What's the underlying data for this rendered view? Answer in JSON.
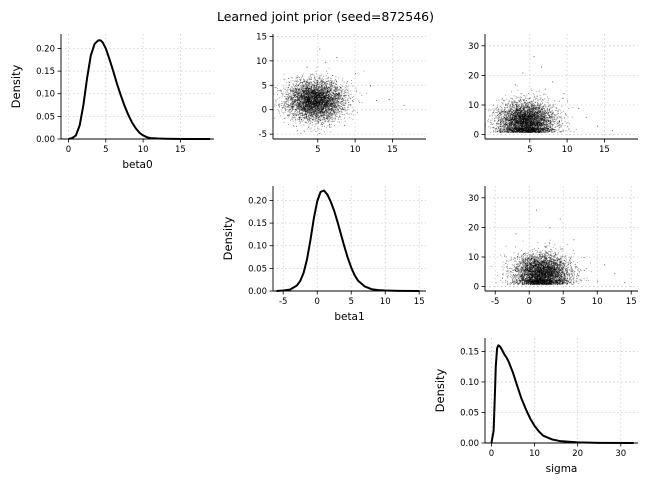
{
  "title": "Learned joint prior (seed=872546)",
  "chart_data": [
    {
      "id": "kde-beta0",
      "type": "line",
      "xlabel": "beta0",
      "ylabel": "Density",
      "xticks": [
        0,
        5,
        10,
        15
      ],
      "yticks": [
        "0.00",
        "0.05",
        "0.10",
        "0.15",
        "0.20"
      ],
      "xlim": [
        -1,
        19.5
      ],
      "ylim": [
        0,
        0.232
      ],
      "grid": true,
      "x": [
        0.0,
        0.5,
        1.0,
        1.5,
        2.0,
        2.5,
        3.0,
        3.5,
        4.0,
        4.3,
        4.6,
        5.0,
        5.5,
        6.0,
        6.5,
        7.0,
        7.5,
        8.0,
        8.5,
        9.0,
        9.5,
        10.0,
        10.5,
        11.0,
        12.0,
        13.0,
        14.0,
        16.0,
        19.0
      ],
      "y": [
        0.0,
        0.002,
        0.008,
        0.03,
        0.075,
        0.135,
        0.185,
        0.21,
        0.218,
        0.218,
        0.213,
        0.2,
        0.176,
        0.15,
        0.122,
        0.097,
        0.074,
        0.054,
        0.037,
        0.024,
        0.014,
        0.008,
        0.004,
        0.002,
        0.001,
        0.0005,
        0.0002,
        0.0001,
        0.0
      ]
    },
    {
      "id": "scatter-beta0-beta1",
      "type": "scatter",
      "x_variable": "beta0",
      "y_variable": "beta1",
      "xticks": [
        5,
        10,
        15
      ],
      "yticks": [
        -5,
        0,
        5,
        10,
        15
      ],
      "xlim": [
        -1,
        19.5
      ],
      "ylim": [
        -6,
        15.5
      ],
      "grid": true,
      "point_color": "#000000",
      "mean": [
        4.6,
        1.9
      ],
      "sd": [
        1.9,
        2.0
      ],
      "corr": 0.0,
      "n_points": 4500,
      "outliers": [
        [
          5.2,
          12.5
        ],
        [
          7.5,
          10.8
        ],
        [
          3.5,
          8.8
        ],
        [
          12.8,
          2.0
        ],
        [
          8.5,
          -3.1
        ],
        [
          14.5,
          2.2
        ],
        [
          2.2,
          -4.2
        ],
        [
          16.5,
          1.0
        ],
        [
          10.0,
          7.5
        ],
        [
          6.0,
          9.8
        ],
        [
          12.0,
          5.0
        ],
        [
          1.0,
          6.5
        ]
      ]
    },
    {
      "id": "scatter-beta0-sigma",
      "type": "scatter",
      "x_variable": "beta0",
      "y_variable": "sigma",
      "xticks": [
        5,
        10,
        15
      ],
      "yticks": [
        0,
        10,
        20,
        30
      ],
      "xlim": [
        -1,
        19.5
      ],
      "ylim": [
        -1.5,
        34
      ],
      "grid": true,
      "point_color": "#000000",
      "mean": [
        4.5,
        4.6
      ],
      "sd": [
        1.9,
        3.2
      ],
      "corr": 0.0,
      "sigma_floor": 0.8,
      "n_points": 4500,
      "outliers": [
        [
          5.5,
          26.5
        ],
        [
          4.0,
          21.0
        ],
        [
          8.0,
          18.0
        ],
        [
          6.5,
          23.0
        ],
        [
          14.0,
          3.0
        ],
        [
          11.5,
          9.0
        ],
        [
          16.0,
          1.5
        ],
        [
          9.5,
          14.0
        ],
        [
          3.0,
          17.0
        ],
        [
          12.5,
          6.0
        ],
        [
          7.0,
          15.5
        ],
        [
          10.0,
          11.5
        ]
      ]
    },
    {
      "id": "kde-beta1",
      "type": "line",
      "xlabel": "beta1",
      "ylabel": "Density",
      "xticks": [
        -5,
        0,
        5,
        10,
        15
      ],
      "yticks": [
        "0.00",
        "0.05",
        "0.10",
        "0.15",
        "0.20"
      ],
      "xlim": [
        -6.5,
        16
      ],
      "ylim": [
        0,
        0.232
      ],
      "grid": true,
      "x": [
        -6.0,
        -5.0,
        -4.0,
        -3.0,
        -2.5,
        -2.0,
        -1.5,
        -1.0,
        -0.5,
        0.0,
        0.5,
        1.0,
        1.5,
        2.0,
        2.5,
        3.0,
        3.5,
        4.0,
        4.5,
        5.0,
        5.5,
        6.0,
        7.0,
        8.0,
        9.0,
        10.0,
        12.0,
        15.0
      ],
      "y": [
        0.0,
        0.001,
        0.003,
        0.012,
        0.022,
        0.04,
        0.07,
        0.112,
        0.16,
        0.198,
        0.219,
        0.222,
        0.213,
        0.197,
        0.177,
        0.152,
        0.125,
        0.098,
        0.073,
        0.052,
        0.035,
        0.023,
        0.01,
        0.004,
        0.002,
        0.001,
        0.0003,
        0.0
      ]
    },
    {
      "id": "scatter-beta1-sigma",
      "type": "scatter",
      "x_variable": "beta1",
      "y_variable": "sigma",
      "xticks": [
        -5,
        0,
        5,
        10,
        15
      ],
      "yticks": [
        0,
        10,
        20,
        30
      ],
      "xlim": [
        -6.5,
        16
      ],
      "ylim": [
        -1.5,
        34
      ],
      "grid": true,
      "point_color": "#000000",
      "mean": [
        1.8,
        4.6
      ],
      "sd": [
        2.0,
        3.2
      ],
      "corr": 0.0,
      "sigma_floor": 0.8,
      "n_points": 4500,
      "outliers": [
        [
          1.0,
          26.0
        ],
        [
          4.5,
          23.0
        ],
        [
          -2.0,
          18.0
        ],
        [
          10.0,
          2.0
        ],
        [
          12.5,
          4.5
        ],
        [
          8.0,
          10.0
        ],
        [
          14.0,
          1.5
        ],
        [
          -4.0,
          3.0
        ],
        [
          6.5,
          16.0
        ],
        [
          3.0,
          20.0
        ],
        [
          11.0,
          7.5
        ],
        [
          -3.5,
          8.0
        ]
      ]
    },
    {
      "id": "kde-sigma",
      "type": "line",
      "xlabel": "sigma",
      "ylabel": "Density",
      "xticks": [
        0,
        10,
        20,
        30
      ],
      "yticks": [
        "0.00",
        "0.05",
        "0.10",
        "0.15"
      ],
      "xlim": [
        -1.5,
        34
      ],
      "ylim": [
        0,
        0.172
      ],
      "grid": true,
      "x": [
        0.0,
        0.5,
        0.8,
        1.0,
        1.3,
        1.6,
        2.0,
        2.5,
        3.0,
        3.5,
        4.0,
        5.0,
        6.0,
        7.0,
        8.0,
        9.0,
        10.0,
        11.0,
        12.0,
        14.0,
        16.0,
        20.0,
        25.0,
        33.0
      ],
      "y": [
        0.0,
        0.02,
        0.08,
        0.125,
        0.155,
        0.16,
        0.158,
        0.152,
        0.145,
        0.14,
        0.133,
        0.115,
        0.093,
        0.072,
        0.055,
        0.04,
        0.028,
        0.019,
        0.012,
        0.006,
        0.003,
        0.001,
        0.0003,
        0.0
      ]
    }
  ]
}
